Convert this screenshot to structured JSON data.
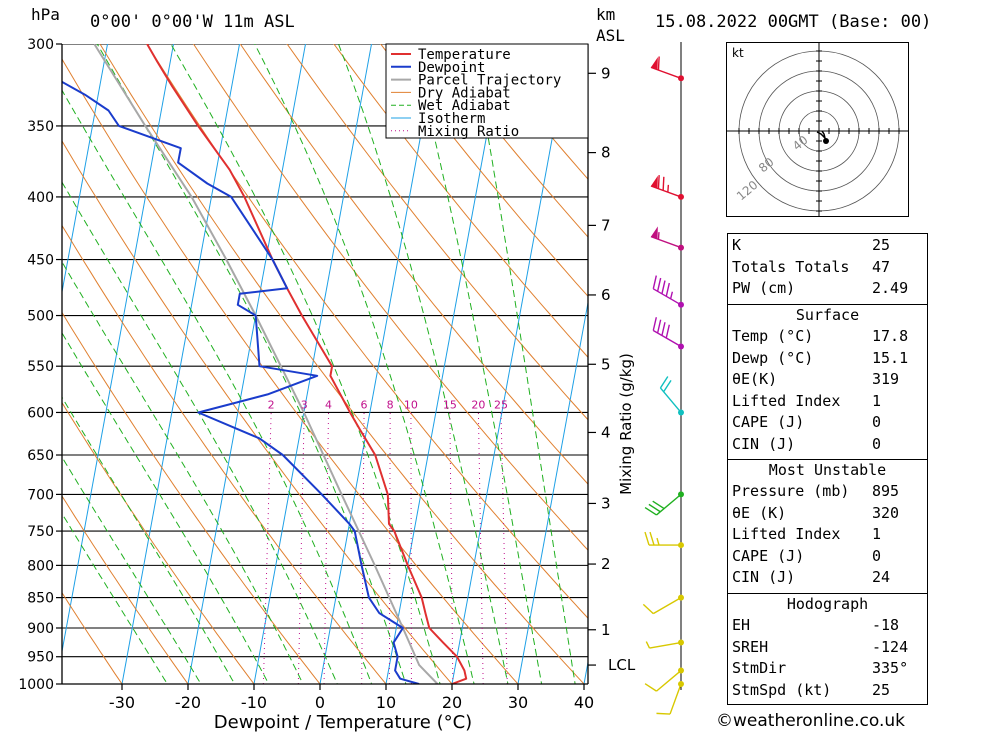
{
  "header": {
    "pressure_unit": "hPa",
    "location": "0°00' 0°00'W 11m ASL",
    "km_unit": "km",
    "asl_label": "ASL",
    "datetime": "15.08.2022 00GMT (Base: 00)"
  },
  "chart_data": {
    "type": "skew-t",
    "xlabel": "Dewpoint / Temperature (°C)",
    "ylabel_right": "Mixing Ratio (g/kg)",
    "x_ticks": [
      -30,
      -20,
      -10,
      0,
      10,
      20,
      30,
      40
    ],
    "pressure_levels": [
      300,
      350,
      400,
      450,
      500,
      550,
      600,
      650,
      700,
      750,
      800,
      850,
      900,
      950,
      1000
    ],
    "height_km_ticks": [
      {
        "label": "1",
        "p": 903
      },
      {
        "label": "2",
        "p": 798
      },
      {
        "label": "3",
        "p": 712
      },
      {
        "label": "4",
        "p": 623
      },
      {
        "label": "5",
        "p": 548
      },
      {
        "label": "6",
        "p": 481
      },
      {
        "label": "7",
        "p": 422
      },
      {
        "label": "8",
        "p": 368
      },
      {
        "label": "9",
        "p": 317
      },
      {
        "label": "LCL",
        "p": 965
      }
    ],
    "mixing_ratio_labels": [
      "2",
      "3",
      "4",
      "6",
      "8",
      "10",
      "15",
      "20",
      "25"
    ],
    "mixing_ratio_values": [
      2,
      3,
      4,
      6,
      8,
      10,
      15,
      20,
      25
    ],
    "legend": [
      "Temperature",
      "Dewpoint",
      "Parcel Trajectory",
      "Dry Adiabat",
      "Wet Adiabat",
      "Isotherm",
      "Mixing Ratio"
    ],
    "colors": {
      "temperature": "#e03030",
      "dewpoint": "#1a3ccc",
      "parcel": "#a8a8a8",
      "dry_adiabat": "#e08030",
      "wet_adiabat": "#20b020",
      "isotherm": "#1ea0e6",
      "mixing_ratio": "#c0108c"
    },
    "temperature_profile": [
      {
        "p": 1000,
        "t": 20
      },
      {
        "p": 990,
        "t": 22
      },
      {
        "p": 975,
        "t": 21.5
      },
      {
        "p": 950,
        "t": 20
      },
      {
        "p": 925,
        "t": 17.5
      },
      {
        "p": 900,
        "t": 15
      },
      {
        "p": 875,
        "t": 14
      },
      {
        "p": 850,
        "t": 13
      },
      {
        "p": 800,
        "t": 10
      },
      {
        "p": 750,
        "t": 7
      },
      {
        "p": 740,
        "t": 6
      },
      {
        "p": 700,
        "t": 5
      },
      {
        "p": 650,
        "t": 2
      },
      {
        "p": 620,
        "t": -1
      },
      {
        "p": 600,
        "t": -3
      },
      {
        "p": 560,
        "t": -7
      },
      {
        "p": 550,
        "t": -7
      },
      {
        "p": 500,
        "t": -13
      },
      {
        "p": 475,
        "t": -16
      },
      {
        "p": 450,
        "t": -19
      },
      {
        "p": 400,
        "t": -25
      },
      {
        "p": 380,
        "t": -28
      },
      {
        "p": 350,
        "t": -34
      },
      {
        "p": 325,
        "t": -39
      },
      {
        "p": 310,
        "t": -42
      },
      {
        "p": 300,
        "t": -44
      }
    ],
    "dewpoint_profile": [
      {
        "p": 1000,
        "t": 15
      },
      {
        "p": 990,
        "t": 12
      },
      {
        "p": 975,
        "t": 11
      },
      {
        "p": 950,
        "t": 11
      },
      {
        "p": 925,
        "t": 10
      },
      {
        "p": 900,
        "t": 11
      },
      {
        "p": 875,
        "t": 7
      },
      {
        "p": 850,
        "t": 5
      },
      {
        "p": 800,
        "t": 3
      },
      {
        "p": 750,
        "t": 1
      },
      {
        "p": 740,
        "t": 0
      },
      {
        "p": 700,
        "t": -5
      },
      {
        "p": 650,
        "t": -12
      },
      {
        "p": 630,
        "t": -16
      },
      {
        "p": 600,
        "t": -26
      },
      {
        "p": 580,
        "t": -16
      },
      {
        "p": 560,
        "t": -9
      },
      {
        "p": 550,
        "t": -18
      },
      {
        "p": 500,
        "t": -20
      },
      {
        "p": 490,
        "t": -23
      },
      {
        "p": 480,
        "t": -23
      },
      {
        "p": 475,
        "t": -16
      },
      {
        "p": 450,
        "t": -19
      },
      {
        "p": 400,
        "t": -27
      },
      {
        "p": 390,
        "t": -31
      },
      {
        "p": 375,
        "t": -36
      },
      {
        "p": 365,
        "t": -36
      },
      {
        "p": 350,
        "t": -46
      },
      {
        "p": 340,
        "t": -48
      },
      {
        "p": 330,
        "t": -52
      },
      {
        "p": 310,
        "t": -62
      },
      {
        "p": 300,
        "t": -65
      }
    ],
    "parcel_profile": [
      {
        "p": 1000,
        "t": 17.8
      },
      {
        "p": 965,
        "t": 14.5
      },
      {
        "p": 900,
        "t": 11
      },
      {
        "p": 800,
        "t": 5
      },
      {
        "p": 700,
        "t": -2
      },
      {
        "p": 600,
        "t": -10
      },
      {
        "p": 500,
        "t": -20
      },
      {
        "p": 450,
        "t": -26
      },
      {
        "p": 400,
        "t": -33
      },
      {
        "p": 350,
        "t": -42
      },
      {
        "p": 300,
        "t": -52
      }
    ],
    "wind_profile": [
      {
        "p": 1000,
        "dir": 200,
        "spd": 10,
        "color": "#d8c800"
      },
      {
        "p": 975,
        "dir": 230,
        "spd": 10,
        "color": "#d8c800"
      },
      {
        "p": 925,
        "dir": 260,
        "spd": 5,
        "color": "#d8c800"
      },
      {
        "p": 850,
        "dir": 240,
        "spd": 10,
        "color": "#d8c800"
      },
      {
        "p": 770,
        "dir": 270,
        "spd": 25,
        "color": "#d8c800"
      },
      {
        "p": 700,
        "dir": 230,
        "spd": 30,
        "color": "#20b020"
      },
      {
        "p": 600,
        "dir": 320,
        "spd": 20,
        "color": "#10c0c0"
      },
      {
        "p": 530,
        "dir": 300,
        "spd": 40,
        "color": "#b010b0"
      },
      {
        "p": 490,
        "dir": 300,
        "spd": 45,
        "color": "#b010b0"
      },
      {
        "p": 440,
        "dir": 290,
        "spd": 55,
        "color": "#c01080"
      },
      {
        "p": 400,
        "dir": 290,
        "spd": 75,
        "color": "#e01030"
      },
      {
        "p": 320,
        "dir": 290,
        "spd": 60,
        "color": "#e01030"
      }
    ],
    "hodograph": {
      "unit": "kt",
      "ring_labels": [
        "40",
        "80",
        "120"
      ],
      "points": [
        [
          -2,
          1
        ],
        [
          2,
          3
        ],
        [
          4,
          5
        ],
        [
          6,
          7
        ],
        [
          5,
          3
        ],
        [
          3,
          0
        ]
      ]
    }
  },
  "indices": {
    "rows": [
      {
        "label": "K",
        "value": "25"
      },
      {
        "label": "Totals Totals",
        "value": "47"
      },
      {
        "label": "PW (cm)",
        "value": "2.49"
      }
    ]
  },
  "surface": {
    "title": "Surface",
    "rows": [
      {
        "label": "Temp (°C)",
        "value": "17.8"
      },
      {
        "label": "Dewp (°C)",
        "value": "15.1"
      },
      {
        "label": "θE(K)",
        "value": "319"
      },
      {
        "label": "Lifted Index",
        "value": "1"
      },
      {
        "label": "CAPE (J)",
        "value": "0"
      },
      {
        "label": "CIN (J)",
        "value": "0"
      }
    ]
  },
  "most_unstable": {
    "title": "Most Unstable",
    "rows": [
      {
        "label": "Pressure (mb)",
        "value": "895"
      },
      {
        "label": "θE (K)",
        "value": "320"
      },
      {
        "label": "Lifted Index",
        "value": "1"
      },
      {
        "label": "CAPE (J)",
        "value": "0"
      },
      {
        "label": "CIN (J)",
        "value": "24"
      }
    ]
  },
  "hodograph_table": {
    "title": "Hodograph",
    "rows": [
      {
        "label": "EH",
        "value": "-18"
      },
      {
        "label": "SREH",
        "value": "-124"
      },
      {
        "label": "StmDir",
        "value": "335°"
      },
      {
        "label": "StmSpd (kt)",
        "value": "25"
      }
    ]
  },
  "footer": {
    "copyright": "©weatheronline.co.uk"
  }
}
